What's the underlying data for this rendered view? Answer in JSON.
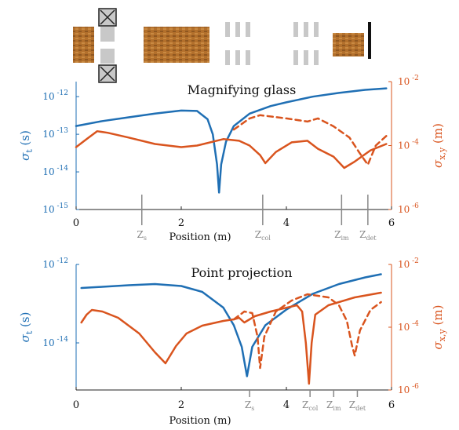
{
  "colors": {
    "blue": "#1f6fb4",
    "orange": "#d9541e",
    "gray": "#888888",
    "axis_left": "#1f6fb4",
    "axis_right": "#d9541e",
    "lens_brown": "#b3702c",
    "aperture_gray": "#c8c8c8"
  },
  "xlabel": "Position (m)",
  "chart_data": [
    {
      "type": "line",
      "title": "Magnifying glass",
      "xlabel": "Position (m)",
      "xlim": [
        0,
        6
      ],
      "x_ticks": [
        "0",
        "2",
        "4",
        "6"
      ],
      "left_axis": {
        "label": "σt (s)",
        "label_main": "σ",
        "label_sub": "t",
        "label_unit": "(s)",
        "scale": "log",
        "ylim_exp": [
          -15,
          -11.6
        ],
        "ticks": [
          {
            "base": "10",
            "exp": "-12"
          },
          {
            "base": "10",
            "exp": "-13"
          },
          {
            "base": "10",
            "exp": "-14"
          },
          {
            "base": "10",
            "exp": "-15"
          }
        ]
      },
      "right_axis": {
        "label": "σx,y (m)",
        "label_main": "σ",
        "label_sub": "x,y",
        "label_unit": "(m)",
        "scale": "log",
        "ylim_exp": [
          -6,
          -2
        ],
        "ticks": [
          {
            "base": "10",
            "exp": "-2"
          },
          {
            "base": "10",
            "exp": "-4"
          },
          {
            "base": "10",
            "exp": "-6"
          }
        ]
      },
      "markers": [
        {
          "label": "Z",
          "sub": "s",
          "x": 1.25
        },
        {
          "label": "Z",
          "sub": "col",
          "x": 3.55
        },
        {
          "label": "Z",
          "sub": "im",
          "x": 5.05
        },
        {
          "label": "Z",
          "sub": "det",
          "x": 5.55
        }
      ],
      "series": [
        {
          "axis": "left",
          "style": "solid",
          "color": "blue",
          "points": [
            [
              0,
              -12.78
            ],
            [
              0.5,
              -12.65
            ],
            [
              1.0,
              -12.55
            ],
            [
              1.5,
              -12.45
            ],
            [
              2.0,
              -12.37
            ],
            [
              2.3,
              -12.38
            ],
            [
              2.5,
              -12.6
            ],
            [
              2.6,
              -13.0
            ],
            [
              2.68,
              -13.8
            ],
            [
              2.72,
              -14.55
            ],
            [
              2.76,
              -13.8
            ],
            [
              2.85,
              -13.2
            ],
            [
              3.0,
              -12.78
            ],
            [
              3.3,
              -12.45
            ],
            [
              3.7,
              -12.25
            ],
            [
              4.0,
              -12.15
            ],
            [
              4.5,
              -12.0
            ],
            [
              5.0,
              -11.9
            ],
            [
              5.5,
              -11.82
            ],
            [
              5.9,
              -11.78
            ]
          ]
        },
        {
          "axis": "right",
          "style": "solid",
          "color": "orange",
          "points": [
            [
              0,
              -4.05
            ],
            [
              0.2,
              -3.8
            ],
            [
              0.4,
              -3.55
            ],
            [
              0.6,
              -3.6
            ],
            [
              1.0,
              -3.75
            ],
            [
              1.5,
              -3.95
            ],
            [
              2.0,
              -4.05
            ],
            [
              2.3,
              -4.0
            ],
            [
              2.8,
              -3.8
            ],
            [
              3.1,
              -3.85
            ],
            [
              3.3,
              -4.0
            ],
            [
              3.5,
              -4.3
            ],
            [
              3.6,
              -4.55
            ],
            [
              3.8,
              -4.2
            ],
            [
              4.1,
              -3.9
            ],
            [
              4.4,
              -3.85
            ],
            [
              4.6,
              -4.1
            ],
            [
              4.9,
              -4.35
            ],
            [
              5.1,
              -4.7
            ],
            [
              5.3,
              -4.5
            ],
            [
              5.6,
              -4.15
            ],
            [
              5.9,
              -3.95
            ]
          ]
        },
        {
          "axis": "right",
          "style": "dashed",
          "color": "orange",
          "points": [
            [
              3.0,
              -3.5
            ],
            [
              3.3,
              -3.15
            ],
            [
              3.5,
              -3.05
            ],
            [
              4.0,
              -3.15
            ],
            [
              4.4,
              -3.25
            ],
            [
              4.6,
              -3.15
            ],
            [
              4.9,
              -3.4
            ],
            [
              5.2,
              -3.75
            ],
            [
              5.4,
              -4.25
            ],
            [
              5.55,
              -4.6
            ],
            [
              5.7,
              -4.0
            ],
            [
              5.9,
              -3.7
            ]
          ]
        }
      ]
    },
    {
      "type": "line",
      "title": "Point projection",
      "xlabel": "Position (m)",
      "xlim": [
        0,
        6
      ],
      "x_ticks": [
        "0",
        "2",
        "4",
        "6"
      ],
      "left_axis": {
        "label": "σt (s)",
        "label_main": "σ",
        "label_sub": "t",
        "label_unit": "(s)",
        "scale": "log",
        "ylim_exp": [
          -15.2,
          -12
        ],
        "ticks": [
          {
            "base": "10",
            "exp": "-12"
          },
          {
            "base": "10",
            "exp": "-14"
          }
        ]
      },
      "right_axis": {
        "label": "σx,y (m)",
        "label_main": "σ",
        "label_sub": "x,y",
        "label_unit": "(m)",
        "scale": "log",
        "ylim_exp": [
          -6,
          -2
        ],
        "ticks": [
          {
            "base": "10",
            "exp": "-2"
          },
          {
            "base": "10",
            "exp": "-4"
          },
          {
            "base": "10",
            "exp": "-6"
          }
        ]
      },
      "markers": [
        {
          "label": "Z",
          "sub": "s",
          "x": 3.3
        },
        {
          "label": "Z",
          "sub": "col",
          "x": 4.45
        },
        {
          "label": "Z",
          "sub": "im",
          "x": 4.9
        },
        {
          "label": "Z",
          "sub": "det",
          "x": 5.35
        }
      ],
      "series": [
        {
          "axis": "left",
          "style": "solid",
          "color": "blue",
          "points": [
            [
              0.1,
              -12.6
            ],
            [
              0.5,
              -12.57
            ],
            [
              1.0,
              -12.53
            ],
            [
              1.5,
              -12.5
            ],
            [
              2.0,
              -12.55
            ],
            [
              2.4,
              -12.7
            ],
            [
              2.8,
              -13.1
            ],
            [
              3.0,
              -13.55
            ],
            [
              3.15,
              -14.1
            ],
            [
              3.25,
              -14.85
            ],
            [
              3.35,
              -14.1
            ],
            [
              3.6,
              -13.55
            ],
            [
              4.0,
              -13.15
            ],
            [
              4.5,
              -12.75
            ],
            [
              5.0,
              -12.5
            ],
            [
              5.5,
              -12.33
            ],
            [
              5.8,
              -12.25
            ]
          ]
        },
        {
          "axis": "right",
          "style": "solid",
          "color": "orange",
          "points": [
            [
              0.1,
              -3.85
            ],
            [
              0.2,
              -3.6
            ],
            [
              0.3,
              -3.45
            ],
            [
              0.5,
              -3.5
            ],
            [
              0.8,
              -3.7
            ],
            [
              1.2,
              -4.2
            ],
            [
              1.5,
              -4.8
            ],
            [
              1.7,
              -5.15
            ],
            [
              1.9,
              -4.6
            ],
            [
              2.1,
              -4.2
            ],
            [
              2.4,
              -3.95
            ],
            [
              2.8,
              -3.8
            ],
            [
              3.0,
              -3.75
            ],
            [
              3.1,
              -3.7
            ],
            [
              3.2,
              -3.85
            ],
            [
              3.4,
              -3.65
            ],
            [
              3.7,
              -3.5
            ],
            [
              4.0,
              -3.38
            ],
            [
              4.2,
              -3.3
            ],
            [
              4.3,
              -3.5
            ],
            [
              4.37,
              -4.5
            ],
            [
              4.43,
              -5.8
            ],
            [
              4.48,
              -4.5
            ],
            [
              4.55,
              -3.6
            ],
            [
              4.8,
              -3.3
            ],
            [
              5.3,
              -3.05
            ],
            [
              5.8,
              -2.9
            ]
          ]
        },
        {
          "axis": "right",
          "style": "dashed",
          "color": "orange",
          "points": [
            [
              3.0,
              -3.75
            ],
            [
              3.2,
              -3.5
            ],
            [
              3.35,
              -3.55
            ],
            [
              3.45,
              -4.3
            ],
            [
              3.5,
              -5.3
            ],
            [
              3.58,
              -4.3
            ],
            [
              3.8,
              -3.5
            ],
            [
              4.1,
              -3.15
            ],
            [
              4.4,
              -2.95
            ],
            [
              4.8,
              -3.05
            ],
            [
              5.0,
              -3.3
            ],
            [
              5.15,
              -3.8
            ],
            [
              5.25,
              -4.6
            ],
            [
              5.3,
              -4.9
            ],
            [
              5.4,
              -4.1
            ],
            [
              5.6,
              -3.45
            ],
            [
              5.8,
              -3.2
            ]
          ]
        }
      ]
    }
  ]
}
